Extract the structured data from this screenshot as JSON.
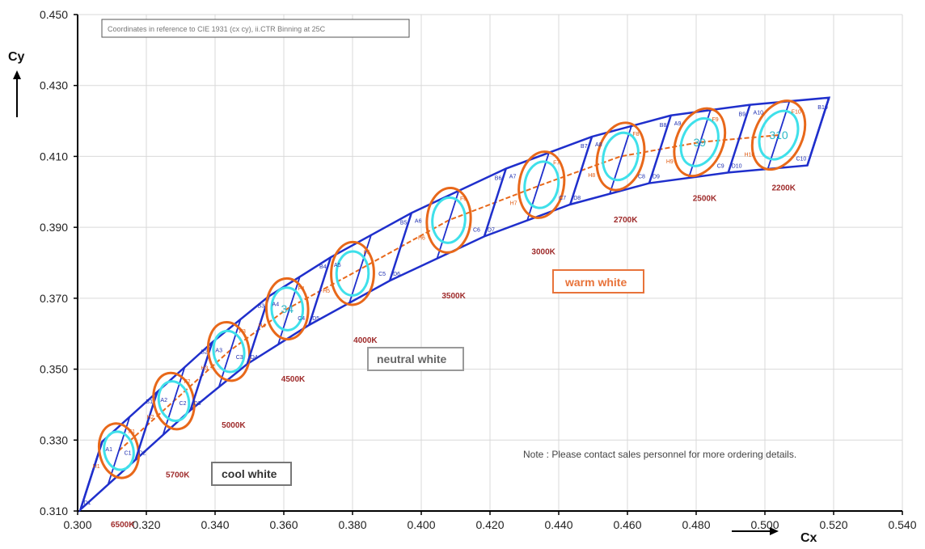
{
  "chart_data": {
    "type": "scatter",
    "title": "",
    "subtitle": "",
    "xlabel": "Cx",
    "ylabel": "Cy",
    "xlim": [
      0.3,
      0.54
    ],
    "ylim": [
      0.31,
      0.45
    ],
    "x_ticks": [
      "0.300",
      "0.320",
      "0.340",
      "0.360",
      "0.380",
      "0.400",
      "0.420",
      "0.440",
      "0.460",
      "0.480",
      "0.500",
      "0.520",
      "0.540"
    ],
    "y_ticks": [
      "0.310",
      "0.330",
      "0.350",
      "0.370",
      "0.390",
      "0.410",
      "0.430",
      "0.450"
    ],
    "grid": true,
    "reference_note": "Coordinates in reference to CIE 1931 (cx cy), ii.CTR Binning at 25C",
    "note": "Note : Please contact sales personnel for more ordering details.",
    "category_boxes": [
      {
        "label": "cool white",
        "color": "#777777"
      },
      {
        "label": "neutral white",
        "color": "#999999"
      },
      {
        "label": "warm white",
        "color": "#e8733a"
      }
    ],
    "colors": {
      "bin_outline": "#1f2fcc",
      "ellipse_outer": "#e8681a",
      "ellipse_inner": "#3fe0ea",
      "cct_text": "#9e2a2a",
      "grid": "#d9d9d9"
    },
    "bins": [
      {
        "cct": "6500K",
        "x": 0.312,
        "y": 0.327,
        "outer_labels": [
          "A1",
          "B1",
          "C1",
          "D1"
        ],
        "inner_labels": [
          "F1",
          "H1"
        ],
        "center_label": ""
      },
      {
        "cct": "5700K",
        "x": 0.328,
        "y": 0.341,
        "outer_labels": [
          "A2",
          "B2",
          "C2",
          "D2"
        ],
        "inner_labels": [
          "F2",
          "H2"
        ],
        "center_label": ""
      },
      {
        "cct": "5000K",
        "x": 0.344,
        "y": 0.355,
        "outer_labels": [
          "A3",
          "B3",
          "C3",
          "D3"
        ],
        "inner_labels": [
          "F3",
          "H3"
        ],
        "center_label": ""
      },
      {
        "cct": "4500K",
        "x": 0.361,
        "y": 0.367,
        "outer_labels": [
          "A4",
          "B4",
          "C4",
          "D4"
        ],
        "inner_labels": [
          "F4",
          "H4"
        ],
        "center_label": "34"
      },
      {
        "cct": "4000K",
        "x": 0.38,
        "y": 0.377,
        "outer_labels": [
          "A5",
          "B5",
          "C5",
          "D5"
        ],
        "inner_labels": [
          "F5",
          "H5"
        ],
        "center_label": ""
      },
      {
        "cct": "3500K",
        "x": 0.408,
        "y": 0.392,
        "outer_labels": [
          "A6",
          "B6",
          "C6",
          "D6"
        ],
        "inner_labels": [
          "F6",
          "H6"
        ],
        "center_label": ""
      },
      {
        "cct": "3000K",
        "x": 0.435,
        "y": 0.402,
        "outer_labels": [
          "A7",
          "B7",
          "C7",
          "D7"
        ],
        "inner_labels": [
          "F7",
          "H7"
        ],
        "center_label": ""
      },
      {
        "cct": "2700K",
        "x": 0.458,
        "y": 0.41,
        "outer_labels": [
          "A8",
          "B8",
          "C8",
          "D8"
        ],
        "inner_labels": [
          "F8",
          "H8"
        ],
        "center_label": ""
      },
      {
        "cct": "2500K",
        "x": 0.481,
        "y": 0.414,
        "outer_labels": [
          "A9",
          "B9",
          "C9",
          "D9"
        ],
        "inner_labels": [
          "F9",
          "H9"
        ],
        "center_label": "39"
      },
      {
        "cct": "2200K",
        "x": 0.504,
        "y": 0.416,
        "outer_labels": [
          "A10",
          "B10",
          "C10",
          "D10"
        ],
        "inner_labels": [
          "F10",
          "H10"
        ],
        "center_label": "310"
      }
    ]
  }
}
